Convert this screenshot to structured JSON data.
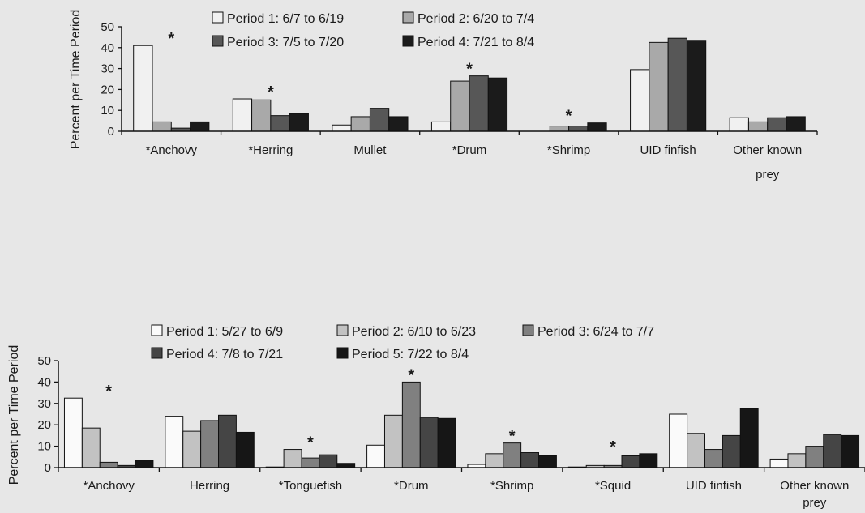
{
  "chart_data": [
    {
      "type": "bar",
      "ylabel": "Percent per Time Period",
      "ylim": [
        0,
        50
      ],
      "yticks": [
        0,
        10,
        20,
        30,
        40,
        50
      ],
      "categories": [
        "*Anchovy",
        "*Herring",
        "Mullet",
        "*Drum",
        "*Shrimp",
        "UID finfish",
        "Other known prey"
      ],
      "series": [
        {
          "name": "Period 1: 6/7 to 6/19",
          "color": "#f1f1f1",
          "values": [
            41,
            15.5,
            3,
            4.5,
            0,
            29.5,
            6.5
          ]
        },
        {
          "name": "Period 2: 6/20 to 7/4",
          "color": "#a9a9a9",
          "values": [
            4.5,
            15,
            7,
            24,
            2.5,
            42.5,
            4.5
          ]
        },
        {
          "name": "Period 3: 7/5 to 7/20",
          "color": "#575757",
          "values": [
            1.5,
            7.5,
            11,
            26.5,
            2.5,
            44.5,
            6.5
          ]
        },
        {
          "name": "Period 4: 7/21 to 8/4",
          "color": "#1b1b1b",
          "values": [
            4.5,
            8.5,
            7,
            25.5,
            4,
            43.5,
            7
          ]
        }
      ],
      "annotations": [
        {
          "text": "*",
          "category": "*Anchovy"
        },
        {
          "text": "*",
          "category": "*Herring"
        },
        {
          "text": "*",
          "category": "*Drum"
        },
        {
          "text": "*",
          "category": "*Shrimp"
        }
      ],
      "legend": "top"
    },
    {
      "type": "bar",
      "ylabel": "Percent per Time Period",
      "ylim": [
        0,
        50
      ],
      "yticks": [
        0,
        10,
        20,
        30,
        40,
        50
      ],
      "categories": [
        "*Anchovy",
        "Herring",
        "*Tonguefish",
        "*Drum",
        "*Shrimp",
        "*Squid",
        "UID finfish",
        "Other known prey"
      ],
      "series": [
        {
          "name": "Period 1: 5/27 to 6/9",
          "color": "#fafafa",
          "values": [
            32.5,
            24,
            0.3,
            10.5,
            1.5,
            0.3,
            25,
            4
          ]
        },
        {
          "name": "Period 2: 6/10 to 6/23",
          "color": "#c2c2c2",
          "values": [
            18.5,
            17,
            8.5,
            24.5,
            6.5,
            1,
            16,
            6.5
          ]
        },
        {
          "name": "Period 3: 6/24 to 7/7",
          "color": "#808080",
          "values": [
            2.5,
            22,
            4.5,
            40,
            11.5,
            1,
            8.5,
            10
          ]
        },
        {
          "name": "Period 4: 7/8 to 7/21",
          "color": "#454545",
          "values": [
            1,
            24.5,
            6,
            23.5,
            7,
            5.5,
            15,
            15.5
          ]
        },
        {
          "name": "Period 5: 7/22 to 8/4",
          "color": "#161616",
          "values": [
            3.5,
            16.5,
            2,
            23,
            5.5,
            6.5,
            27.5,
            15
          ]
        }
      ],
      "annotations": [
        {
          "text": "*",
          "category": "*Anchovy"
        },
        {
          "text": "*",
          "category": "*Tonguefish"
        },
        {
          "text": "*",
          "category": "*Drum"
        },
        {
          "text": "*",
          "category": "*Shrimp"
        },
        {
          "text": "*",
          "category": "*Squid"
        }
      ],
      "legend": "top"
    }
  ]
}
